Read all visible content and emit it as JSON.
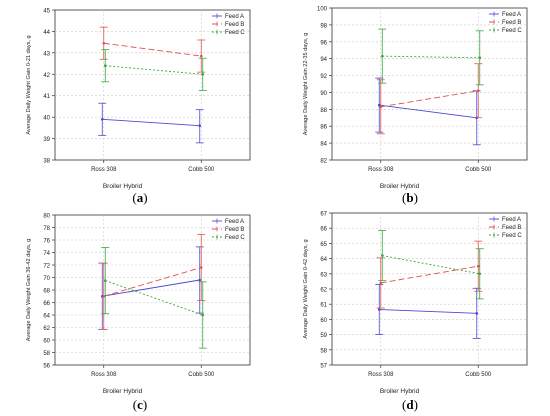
{
  "chart_data": [
    {
      "type": "line",
      "panel": "a",
      "caption_letter": "a",
      "xlabel": "Broiler Hybrid",
      "ylabel": "Average Daily Weight Gain 0-21 days, g",
      "categories": [
        "Ross 308",
        "Cobb 500"
      ],
      "ylim": [
        38,
        45
      ],
      "yticks": [
        38,
        39,
        40,
        41,
        42,
        43,
        44,
        45
      ],
      "legend_position": "top-right",
      "grid": true,
      "series": [
        {
          "name": "Feed A",
          "color": "#4a4ad6",
          "dash": "solid",
          "values": [
            39.9,
            39.6
          ],
          "lower": [
            39.15,
            38.8
          ],
          "upper": [
            40.65,
            40.35
          ]
        },
        {
          "name": "Feed B",
          "color": "#e05050",
          "dash": "long",
          "values": [
            43.45,
            42.85
          ],
          "lower": [
            42.7,
            42.1
          ],
          "upper": [
            44.2,
            43.6
          ]
        },
        {
          "name": "Feed C",
          "color": "#3aa83a",
          "dash": "dot",
          "values": [
            42.4,
            42.0
          ],
          "lower": [
            41.65,
            41.25
          ],
          "upper": [
            43.15,
            42.75
          ]
        }
      ]
    },
    {
      "type": "line",
      "panel": "b",
      "caption_letter": "b",
      "xlabel": "Broiler Hybrid",
      "ylabel": "Average Daily Weight Gain 22-35 days, g",
      "categories": [
        "Ross 308",
        "Cobb 500"
      ],
      "ylim": [
        82,
        100
      ],
      "yticks": [
        82,
        84,
        86,
        88,
        90,
        92,
        94,
        96,
        98,
        100
      ],
      "legend_position": "top-right",
      "grid": true,
      "series": [
        {
          "name": "Feed A",
          "color": "#4a4ad6",
          "dash": "solid",
          "values": [
            88.5,
            87.0
          ],
          "lower": [
            85.3,
            83.8
          ],
          "upper": [
            91.7,
            90.2
          ]
        },
        {
          "name": "Feed B",
          "color": "#e05050",
          "dash": "long",
          "values": [
            88.3,
            90.2
          ],
          "lower": [
            85.1,
            87.0
          ],
          "upper": [
            91.5,
            93.4
          ]
        },
        {
          "name": "Feed C",
          "color": "#3aa83a",
          "dash": "dot",
          "values": [
            94.3,
            94.1
          ],
          "lower": [
            91.1,
            90.9
          ],
          "upper": [
            97.5,
            97.3
          ]
        }
      ]
    },
    {
      "type": "line",
      "panel": "c",
      "caption_letter": "c",
      "xlabel": "Broiler Hybrid",
      "ylabel": "Average Daily Weight Gain 36-42 days, g",
      "categories": [
        "Ross 308",
        "Cobb 500"
      ],
      "ylim": [
        56,
        80
      ],
      "yticks": [
        56,
        58,
        60,
        62,
        64,
        66,
        68,
        70,
        72,
        74,
        76,
        78,
        80
      ],
      "legend_position": "top-right",
      "grid": true,
      "series": [
        {
          "name": "Feed A",
          "color": "#4a4ad6",
          "dash": "solid",
          "values": [
            67.0,
            69.6
          ],
          "lower": [
            61.7,
            64.3
          ],
          "upper": [
            72.3,
            74.9
          ]
        },
        {
          "name": "Feed B",
          "color": "#e05050",
          "dash": "long",
          "values": [
            67.0,
            71.6
          ],
          "lower": [
            61.7,
            66.3
          ],
          "upper": [
            72.3,
            76.9
          ]
        },
        {
          "name": "Feed C",
          "color": "#3aa83a",
          "dash": "dot",
          "values": [
            69.5,
            64.0
          ],
          "lower": [
            64.2,
            58.7
          ],
          "upper": [
            74.8,
            69.3
          ]
        }
      ]
    },
    {
      "type": "line",
      "panel": "d",
      "caption_letter": "d",
      "xlabel": "Broiler Hybrid",
      "ylabel": "Average Daily Weight Gain 0-42 days, g",
      "categories": [
        "Ross 308",
        "Cobb 500"
      ],
      "ylim": [
        57,
        67
      ],
      "yticks": [
        57,
        58,
        59,
        60,
        61,
        62,
        63,
        64,
        65,
        66,
        67
      ],
      "legend_position": "top-right",
      "grid": true,
      "series": [
        {
          "name": "Feed A",
          "color": "#4a4ad6",
          "dash": "solid",
          "values": [
            60.65,
            60.4
          ],
          "lower": [
            59.0,
            58.75
          ],
          "upper": [
            62.3,
            62.05
          ]
        },
        {
          "name": "Feed B",
          "color": "#e05050",
          "dash": "long",
          "values": [
            62.4,
            63.5
          ],
          "lower": [
            60.75,
            61.85
          ],
          "upper": [
            64.05,
            65.15
          ]
        },
        {
          "name": "Feed C",
          "color": "#3aa83a",
          "dash": "dot",
          "values": [
            64.2,
            63.0
          ],
          "lower": [
            62.55,
            61.35
          ],
          "upper": [
            65.85,
            64.65
          ]
        }
      ]
    }
  ]
}
